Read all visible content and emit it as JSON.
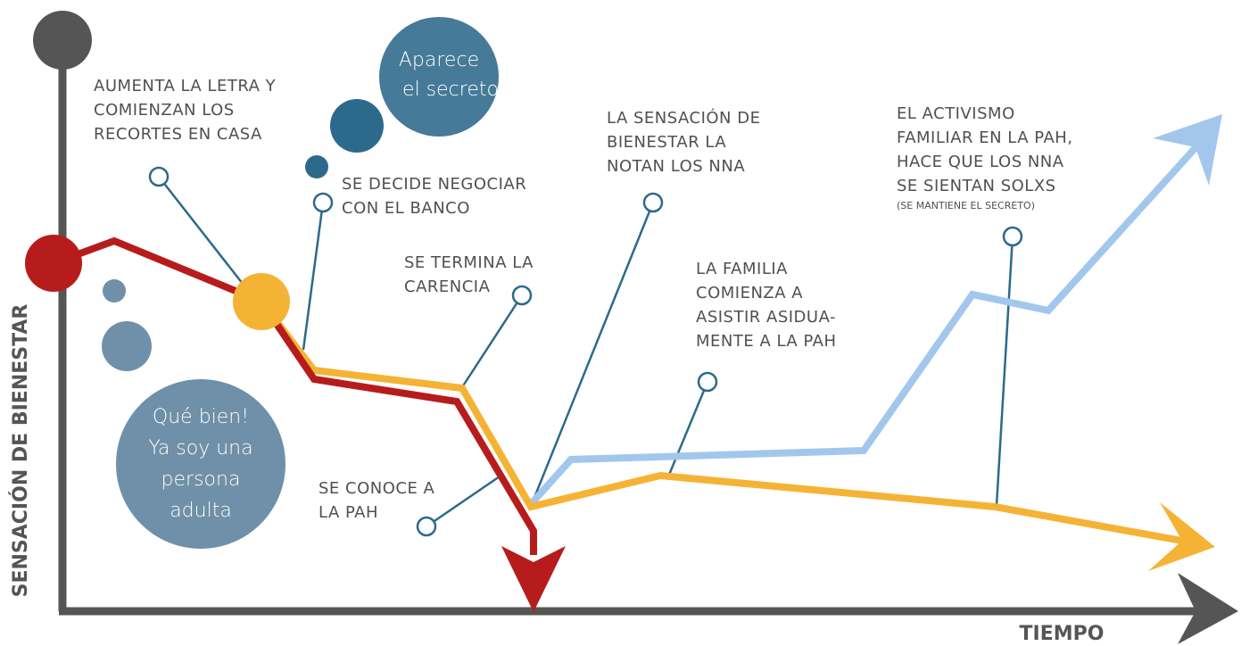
{
  "axes": {
    "y_label": "SENSACIÓN DE BIENESTAR",
    "x_label": "TIEMPO"
  },
  "annotations": [
    {
      "lines": [
        "AUMENTA LA LETRA Y",
        "COMIENZAN LOS",
        "RECORTES EN CASA"
      ]
    },
    {
      "lines": [
        "SE DECIDE NEGOCIAR",
        "CON EL BANCO"
      ]
    },
    {
      "lines": [
        "SE TERMINA LA",
        "CARENCIA"
      ]
    },
    {
      "lines": [
        "LA SENSACIÓN DE",
        "BIENESTAR LA",
        "NOTAN LOS NNA"
      ]
    },
    {
      "lines": [
        "LA FAMILIA",
        "COMIENZA A",
        "ASISTIR ASIDUA-",
        "MENTE A LA PAH"
      ]
    },
    {
      "lines": [
        "EL ACTIVISMO",
        "FAMILIAR EN LA PAH,",
        "HACE QUE LOS NNA",
        "SE SIENTAN SOLXS"
      ],
      "note": "(SE MANTIENE EL SECRETO)"
    },
    {
      "lines": [
        "SE CONOCE A",
        "LA PAH"
      ]
    }
  ],
  "bubbles": [
    {
      "lines": [
        "Qué bien!",
        "Ya soy una",
        "persona",
        "adulta"
      ]
    },
    {
      "lines": [
        "Aparece",
        "el secreto"
      ]
    }
  ]
}
